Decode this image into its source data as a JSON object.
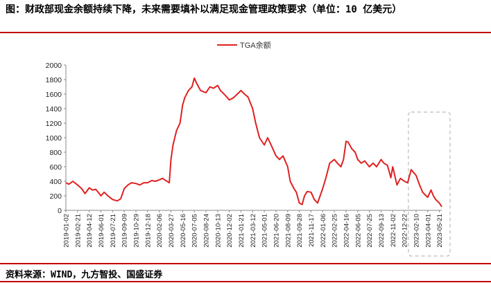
{
  "header": {
    "title": "图：财政部现金余额持续下降，未来需要填补以满足现金管理政策要求（单位：10 亿美元）"
  },
  "footer": {
    "source": "资料来源：WIND，九方智投、国盛证券"
  },
  "colors": {
    "line": "#e02020",
    "rule": "#c00000",
    "highlight": "#bbbbbb"
  },
  "chart_data": {
    "type": "line",
    "title": "",
    "xlabel": "",
    "ylabel": "",
    "ylim": [
      0,
      2000
    ],
    "yticks": [
      0,
      200,
      400,
      600,
      800,
      1000,
      1200,
      1400,
      1600,
      1800,
      2000
    ],
    "grid": false,
    "legend": "top-center",
    "x_tick_labels": [
      "2019-01-02",
      "2019-02-21",
      "2019-04-12",
      "2019-06-01",
      "2019-07-21",
      "2019-09-09",
      "2019-10-29",
      "2019-12-18",
      "2020-02-06",
      "2020-03-27",
      "2020-05-16",
      "2020-07-05",
      "2020-08-24",
      "2020-10-13",
      "2020-12-02",
      "2021-01-21",
      "2021-03-12",
      "2021-05-01",
      "2021-06-20",
      "2021-08-09",
      "2021-09-28",
      "2021-11-17",
      "2022-01-06",
      "2022-02-25",
      "2022-04-16",
      "2022-06-05",
      "2022-07-25",
      "2022-09-13",
      "2022-11-02",
      "2022-12-22",
      "2023-02-10",
      "2023-04-01",
      "2023-05-21"
    ],
    "highlight_range": [
      "2023-01-20",
      "2023-05-31"
    ],
    "series": [
      {
        "name": "TGA余额",
        "points": [
          [
            "2019-01-02",
            380
          ],
          [
            "2019-01-15",
            360
          ],
          [
            "2019-02-01",
            400
          ],
          [
            "2019-02-21",
            350
          ],
          [
            "2019-03-10",
            300
          ],
          [
            "2019-03-25",
            230
          ],
          [
            "2019-04-12",
            310
          ],
          [
            "2019-04-25",
            280
          ],
          [
            "2019-05-10",
            290
          ],
          [
            "2019-05-25",
            230
          ],
          [
            "2019-06-01",
            200
          ],
          [
            "2019-06-15",
            250
          ],
          [
            "2019-07-01",
            200
          ],
          [
            "2019-07-21",
            150
          ],
          [
            "2019-08-10",
            130
          ],
          [
            "2019-08-25",
            160
          ],
          [
            "2019-09-09",
            300
          ],
          [
            "2019-09-25",
            350
          ],
          [
            "2019-10-10",
            380
          ],
          [
            "2019-10-29",
            370
          ],
          [
            "2019-11-15",
            350
          ],
          [
            "2019-12-01",
            380
          ],
          [
            "2019-12-18",
            380
          ],
          [
            "2020-01-05",
            410
          ],
          [
            "2020-01-20",
            400
          ],
          [
            "2020-02-06",
            420
          ],
          [
            "2020-02-20",
            440
          ],
          [
            "2020-03-05",
            410
          ],
          [
            "2020-03-20",
            380
          ],
          [
            "2020-03-27",
            700
          ],
          [
            "2020-04-05",
            900
          ],
          [
            "2020-04-20",
            1100
          ],
          [
            "2020-05-05",
            1200
          ],
          [
            "2020-05-16",
            1450
          ],
          [
            "2020-05-25",
            1550
          ],
          [
            "2020-06-10",
            1650
          ],
          [
            "2020-06-25",
            1700
          ],
          [
            "2020-07-05",
            1820
          ],
          [
            "2020-07-15",
            1750
          ],
          [
            "2020-08-01",
            1650
          ],
          [
            "2020-08-24",
            1620
          ],
          [
            "2020-09-10",
            1700
          ],
          [
            "2020-09-25",
            1680
          ],
          [
            "2020-10-13",
            1720
          ],
          [
            "2020-10-25",
            1650
          ],
          [
            "2020-11-10",
            1600
          ],
          [
            "2020-12-02",
            1520
          ],
          [
            "2020-12-20",
            1550
          ],
          [
            "2021-01-05",
            1600
          ],
          [
            "2021-01-21",
            1650
          ],
          [
            "2021-02-05",
            1600
          ],
          [
            "2021-02-20",
            1560
          ],
          [
            "2021-03-12",
            1400
          ],
          [
            "2021-03-25",
            1200
          ],
          [
            "2021-04-10",
            1000
          ],
          [
            "2021-05-01",
            900
          ],
          [
            "2021-05-15",
            1000
          ],
          [
            "2021-05-30",
            900
          ],
          [
            "2021-06-20",
            750
          ],
          [
            "2021-07-05",
            700
          ],
          [
            "2021-07-20",
            750
          ],
          [
            "2021-08-09",
            600
          ],
          [
            "2021-08-20",
            400
          ],
          [
            "2021-09-05",
            300
          ],
          [
            "2021-09-15",
            250
          ],
          [
            "2021-09-28",
            100
          ],
          [
            "2021-10-10",
            80
          ],
          [
            "2021-10-20",
            200
          ],
          [
            "2021-11-01",
            260
          ],
          [
            "2021-11-17",
            250
          ],
          [
            "2021-12-01",
            150
          ],
          [
            "2021-12-15",
            100
          ],
          [
            "2022-01-06",
            300
          ],
          [
            "2022-01-20",
            450
          ],
          [
            "2022-02-05",
            650
          ],
          [
            "2022-02-25",
            700
          ],
          [
            "2022-03-10",
            650
          ],
          [
            "2022-03-25",
            600
          ],
          [
            "2022-04-05",
            700
          ],
          [
            "2022-04-16",
            950
          ],
          [
            "2022-04-25",
            940
          ],
          [
            "2022-05-10",
            850
          ],
          [
            "2022-05-25",
            800
          ],
          [
            "2022-06-05",
            700
          ],
          [
            "2022-06-20",
            650
          ],
          [
            "2022-07-05",
            680
          ],
          [
            "2022-07-25",
            600
          ],
          [
            "2022-08-10",
            650
          ],
          [
            "2022-08-25",
            600
          ],
          [
            "2022-09-13",
            700
          ],
          [
            "2022-09-25",
            650
          ],
          [
            "2022-10-10",
            620
          ],
          [
            "2022-10-25",
            450
          ],
          [
            "2022-11-02",
            600
          ],
          [
            "2022-11-20",
            350
          ],
          [
            "2022-12-05",
            440
          ],
          [
            "2022-12-22",
            400
          ],
          [
            "2023-01-05",
            380
          ],
          [
            "2023-01-20",
            560
          ],
          [
            "2023-02-10",
            480
          ],
          [
            "2023-02-25",
            350
          ],
          [
            "2023-03-10",
            250
          ],
          [
            "2023-03-25",
            200
          ],
          [
            "2023-04-01",
            180
          ],
          [
            "2023-04-15",
            280
          ],
          [
            "2023-04-25",
            200
          ],
          [
            "2023-05-05",
            150
          ],
          [
            "2023-05-21",
            100
          ],
          [
            "2023-05-31",
            50
          ]
        ]
      }
    ]
  }
}
